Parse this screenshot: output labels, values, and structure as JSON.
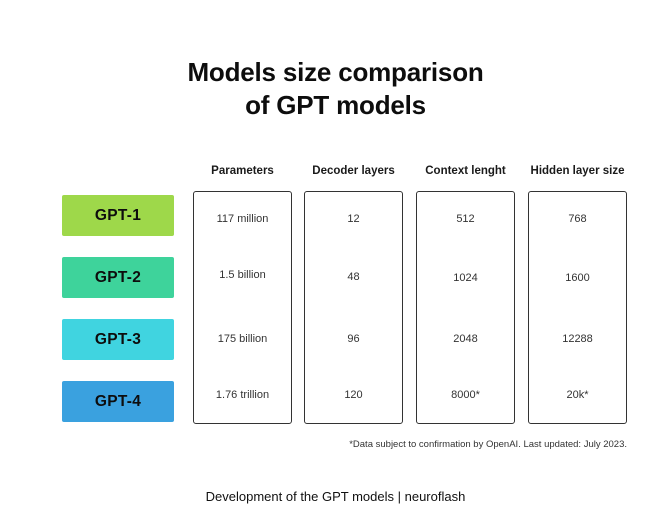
{
  "title": {
    "line1": "Models size comparison",
    "line2": "of GPT models"
  },
  "columns": [
    {
      "label": "Parameters"
    },
    {
      "label": "Decoder layers"
    },
    {
      "label": "Context lenght"
    },
    {
      "label": "Hidden layer size"
    }
  ],
  "models": [
    {
      "name": "GPT-1",
      "color": "#9ed84a",
      "values": [
        "117 million",
        "12",
        "512",
        "768"
      ]
    },
    {
      "name": "GPT-2",
      "color": "#3ed39b",
      "values": [
        "1.5 billion",
        "48",
        "1024",
        "1600"
      ]
    },
    {
      "name": "GPT-3",
      "color": "#40d4e0",
      "values": [
        "175 billion",
        "96",
        "2048",
        "12288"
      ]
    },
    {
      "name": "GPT-4",
      "color": "#3aa1df",
      "values": [
        "1.76 trillion",
        "120",
        "8000*",
        "20k*"
      ]
    }
  ],
  "footnote": "*Data subject to confirmation by OpenAI. Last updated: July 2023.",
  "caption": "Development of the GPT models | neuroflash"
}
